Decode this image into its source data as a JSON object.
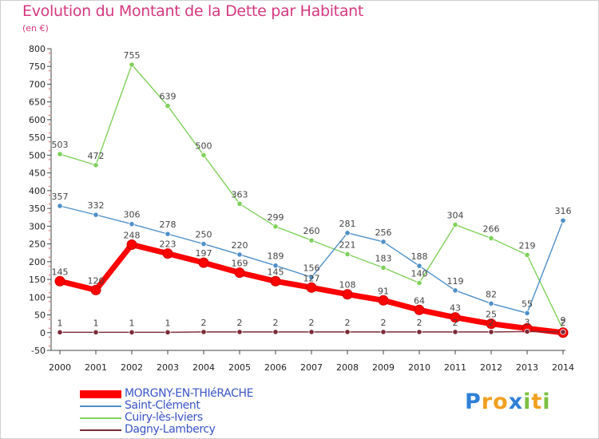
{
  "header": {
    "title": "Evolution du Montant de la Dette par Habitant",
    "subtitle": "(en €)"
  },
  "logo": {
    "letters": [
      "P",
      "r",
      "o",
      "x",
      "i",
      "t",
      "i"
    ],
    "colors": [
      "#2f7fd8",
      "#f0a020",
      "#f0a020",
      "#2f7fd8",
      "#7cc043",
      "#f0a020",
      "#7cc043"
    ]
  },
  "chart_data": {
    "type": "line",
    "title": "Evolution du Montant de la Dette par Habitant",
    "subtitle": "(en €)",
    "x": [
      "2000",
      "2001",
      "2002",
      "2003",
      "2004",
      "2005",
      "2006",
      "2007",
      "2008",
      "2009",
      "2010",
      "2011",
      "2012",
      "2013",
      "2014"
    ],
    "ylim": [
      -50,
      800
    ],
    "yticks": [
      -50,
      0,
      50,
      100,
      150,
      200,
      250,
      300,
      350,
      400,
      450,
      500,
      550,
      600,
      650,
      700,
      750,
      800
    ],
    "grid": false,
    "legend_position": "bottom-left",
    "series": [
      {
        "name": "MORGNY-EN-THIéRACHE",
        "color": "#ff0000",
        "values": [
          145,
          120,
          248,
          223,
          197,
          169,
          145,
          127,
          108,
          91,
          64,
          43,
          25,
          12,
          0
        ],
        "labels": [
          "145",
          "120",
          "248",
          "223",
          "197",
          "169",
          "145",
          "127",
          "108",
          "91",
          "64",
          "43",
          "25",
          "",
          ""
        ]
      },
      {
        "name": "Saint-Clément",
        "color": "#4e8fc9",
        "values": [
          357,
          332,
          306,
          278,
          250,
          220,
          189,
          156,
          281,
          256,
          188,
          119,
          82,
          55,
          316
        ],
        "labels": [
          "357",
          "332",
          "306",
          "278",
          "250",
          "220",
          "189",
          "156",
          "281",
          "256",
          "188",
          "119",
          "82",
          "55",
          "316"
        ]
      },
      {
        "name": "Cuiry-lès-Iviers",
        "color": "#7fd15b",
        "values": [
          503,
          472,
          755,
          639,
          500,
          363,
          299,
          260,
          221,
          183,
          140,
          304,
          266,
          219,
          9
        ],
        "labels": [
          "503",
          "472",
          "755",
          "639",
          "500",
          "363",
          "299",
          "260",
          "221",
          "183",
          "140",
          "304",
          "266",
          "219",
          "9"
        ]
      },
      {
        "name": "Dagny-Lambercy",
        "color": "#7a2a36",
        "values": [
          1,
          1,
          1,
          1,
          2,
          2,
          2,
          2,
          2,
          2,
          2,
          2,
          2,
          3,
          2
        ],
        "labels": [
          "1",
          "1",
          "1",
          "1",
          "2",
          "2",
          "2",
          "2",
          "2",
          "2",
          "2",
          "2",
          "2",
          "3",
          "2"
        ]
      }
    ]
  }
}
